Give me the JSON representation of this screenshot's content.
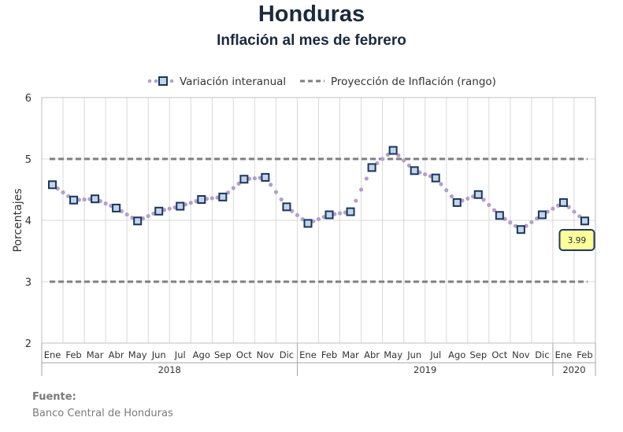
{
  "header": {
    "title": "Honduras",
    "subtitle": "Inflación al mes de febrero"
  },
  "source": {
    "heading": "Fuente:",
    "text": "Banco Central de Honduras"
  },
  "colors": {
    "title": "#1c2a3d",
    "marker_fill": "#c5d4e6",
    "marker_stroke": "#17375e",
    "dots": "#b39fce",
    "projection": "#7f7f7f",
    "grid": "#d9d9d9",
    "callout_fill": "#ffff99",
    "callout_stroke": "#1f3864"
  },
  "chart_data": {
    "type": "line",
    "title": "",
    "xlabel": "",
    "ylabel": "Porcentajes",
    "ylim": [
      2,
      6
    ],
    "yticks": [
      "2",
      "3",
      "4",
      "5",
      "6"
    ],
    "grid": true,
    "legend_position": "top",
    "categories": [
      "Ene",
      "Feb",
      "Mar",
      "Abr",
      "May",
      "Jun",
      "Jul",
      "Ago",
      "Sep",
      "Oct",
      "Nov",
      "Dic",
      "Ene",
      "Feb",
      "Mar",
      "Abr",
      "May",
      "Jun",
      "Jul",
      "Ago",
      "Sep",
      "Oct",
      "Nov",
      "Dic",
      "Ene",
      "Feb"
    ],
    "year_groups": [
      {
        "label": "2018",
        "count": 12
      },
      {
        "label": "2019",
        "count": 12
      },
      {
        "label": "2020",
        "count": 2
      }
    ],
    "series": [
      {
        "name": "Variación interanual",
        "style": "markers-dotted",
        "values": [
          4.58,
          4.33,
          4.35,
          4.2,
          3.99,
          4.15,
          4.23,
          4.34,
          4.38,
          4.67,
          4.7,
          4.22,
          3.95,
          4.09,
          4.14,
          4.86,
          5.14,
          4.81,
          4.69,
          4.29,
          4.42,
          4.08,
          3.85,
          4.09,
          4.29,
          3.99
        ]
      },
      {
        "name": "Proyección de Inflación (rango)",
        "style": "dashed",
        "upper": 5,
        "lower": 3
      }
    ],
    "annotations": [
      {
        "label": "3.99",
        "category_index": 25
      }
    ]
  }
}
